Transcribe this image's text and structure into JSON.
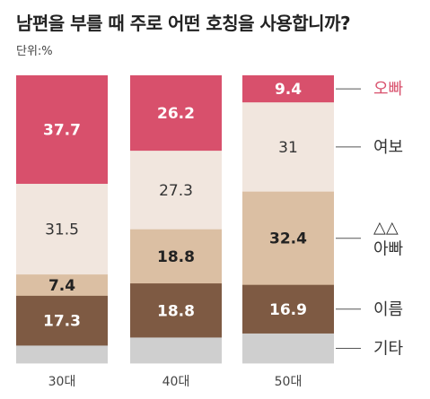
{
  "chart_data": {
    "type": "bar",
    "stacked": true,
    "percent": true,
    "title": "남편을 부를 때 주로 어떤 호칭을 사용합니까?",
    "unit": "단위:%",
    "categories": [
      "30대",
      "40대",
      "50대"
    ],
    "series": [
      {
        "name": "오빠",
        "values": [
          37.7,
          26.2,
          9.4
        ],
        "color": "#d8506c",
        "label_color": "#ffffff",
        "legend_color": "#d8506c"
      },
      {
        "name": "여보",
        "values": [
          31.5,
          27.3,
          31
        ],
        "color": "#f1e6de",
        "label_color": "#333333",
        "legend_color": "#333333"
      },
      {
        "name": "△△ 아빠",
        "values": [
          7.4,
          18.8,
          32.4
        ],
        "color": "#dbbfa3",
        "label_color": "#222222",
        "legend_color": "#333333"
      },
      {
        "name": "이름",
        "values": [
          17.3,
          18.8,
          16.9
        ],
        "color": "#7e5a43",
        "label_color": "#ffffff",
        "legend_color": "#333333"
      },
      {
        "name": "기타",
        "values": [
          6.1,
          8.9,
          10.3
        ],
        "color": "#cfcfcf",
        "label_color": "#333333",
        "legend_color": "#333333"
      }
    ],
    "data_labels": [
      [
        "37.7",
        "31.5",
        "7.4",
        "17.3",
        ""
      ],
      [
        "26.2",
        "27.3",
        "18.8",
        "18.8",
        ""
      ],
      [
        "9.4",
        "31",
        "32.4",
        "16.9",
        ""
      ]
    ],
    "label_bold": [
      [
        true,
        false,
        true,
        true,
        false
      ],
      [
        true,
        false,
        true,
        true,
        false
      ],
      [
        true,
        false,
        true,
        true,
        false
      ]
    ]
  }
}
